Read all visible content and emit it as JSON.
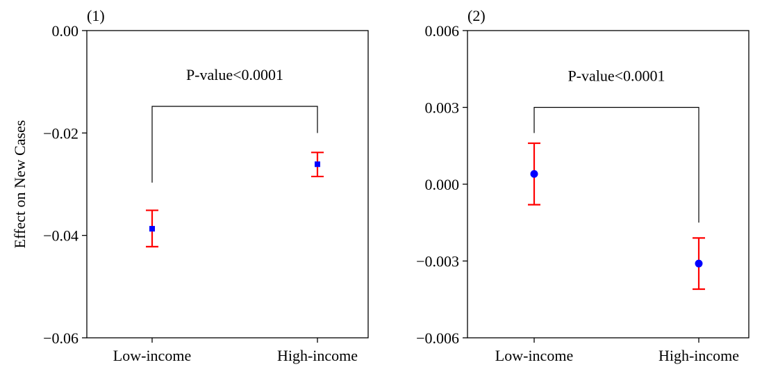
{
  "chart_data": [
    {
      "type": "scatter",
      "panel_label": "(1)",
      "ylabel": "Effect on New Cases",
      "categories": [
        "Low-income",
        "High-income"
      ],
      "ylim": [
        -0.06,
        0.0
      ],
      "yticks": [
        0.0,
        -0.02,
        -0.04,
        -0.06
      ],
      "ytick_labels": [
        "0.00",
        "−0.02",
        "−0.04",
        "−0.06"
      ],
      "marker": "square",
      "marker_color": "#0000ff",
      "errorbar_color": "#ff0000",
      "points": [
        {
          "category": "Low-income",
          "value": -0.0387,
          "lower": -0.0422,
          "upper": -0.0351
        },
        {
          "category": "High-income",
          "value": -0.0261,
          "lower": -0.0285,
          "upper": -0.0238
        }
      ],
      "annotation": {
        "text": "P-value<0.0001",
        "bracket_top": -0.0148,
        "left_end": -0.0297,
        "right_end": -0.02
      },
      "grid": false
    },
    {
      "type": "scatter",
      "panel_label": "(2)",
      "ylabel": "",
      "categories": [
        "Low-income",
        "High-income"
      ],
      "ylim": [
        -0.006,
        0.006
      ],
      "yticks": [
        0.006,
        0.003,
        0.0,
        -0.003,
        -0.006
      ],
      "ytick_labels": [
        "0.006",
        "0.003",
        "0.000",
        "−0.003",
        "−0.006"
      ],
      "marker": "circle",
      "marker_color": "#0000ff",
      "errorbar_color": "#ff0000",
      "points": [
        {
          "category": "Low-income",
          "value": 0.0004,
          "lower": -0.0008,
          "upper": 0.0016
        },
        {
          "category": "High-income",
          "value": -0.0031,
          "lower": -0.0041,
          "upper": -0.0021
        }
      ],
      "annotation": {
        "text": "P-value<0.0001",
        "bracket_top": 0.003,
        "left_end": 0.002,
        "right_end": -0.0015
      },
      "grid": false
    }
  ]
}
